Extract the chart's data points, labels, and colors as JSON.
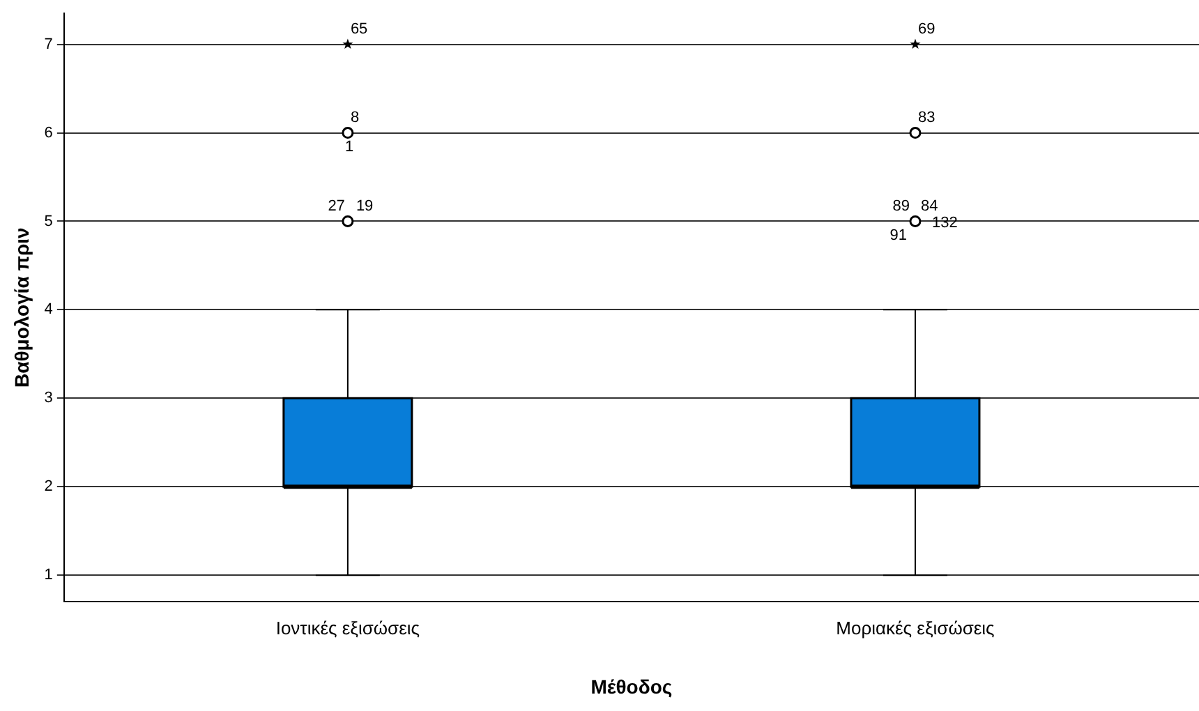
{
  "chart_data": {
    "type": "box",
    "xlabel": "Μέθοδος",
    "ylabel": "Βαθμολογία πριν",
    "categories": [
      "Ιοντικές εξισώσεις",
      "Μοριακές εξισώσεις"
    ],
    "color": "#087dd8",
    "boxes": [
      {
        "low": 1,
        "q1": 2,
        "median": 2,
        "q3": 3,
        "high": 4,
        "outliers": [
          5,
          6,
          7
        ]
      },
      {
        "low": 1,
        "q1": 2,
        "median": 2,
        "q3": 3,
        "high": 4,
        "outliers": [
          5,
          6,
          7
        ]
      }
    ],
    "ylim": [
      0.7,
      7.35
    ],
    "yticks": [
      1,
      2,
      3,
      4,
      5,
      6,
      7
    ],
    "grid": "y",
    "legend": false,
    "annotations": [
      "65",
      "8",
      "1",
      "27",
      "19",
      "69",
      "83",
      "89",
      "84",
      "91",
      "132"
    ]
  }
}
